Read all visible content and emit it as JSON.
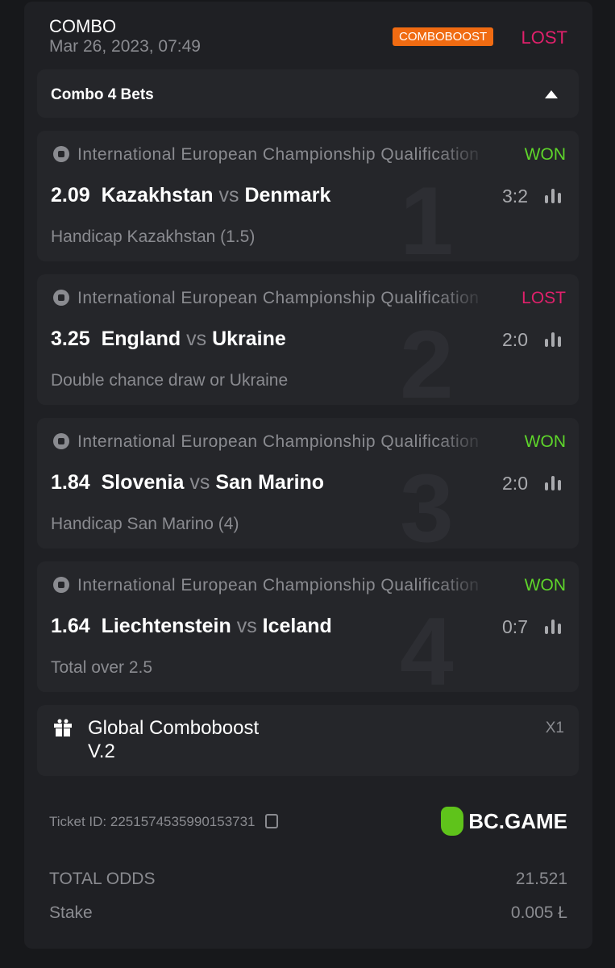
{
  "header": {
    "title": "COMBO",
    "date": "Mar 26, 2023, 07:49",
    "badge": "COMBOBOOST",
    "status": "LOST"
  },
  "combo": {
    "label": "Combo 4 Bets",
    "toggle_icon": "triangle-up-icon"
  },
  "legs": [
    {
      "index": "1",
      "league": "International European Championship Qualification",
      "result": "WON",
      "odds": "2.09",
      "home": "Kazakhstan",
      "vs": "vs",
      "away": "Denmark",
      "score": "3:2",
      "market": "Handicap Kazakhstan (1.5)"
    },
    {
      "index": "2",
      "league": "International European Championship Qualification",
      "result": "LOST",
      "odds": "3.25",
      "home": "England",
      "vs": "vs",
      "away": "Ukraine",
      "score": "2:0",
      "market": "Double chance draw or Ukraine"
    },
    {
      "index": "3",
      "league": "International European Championship Qualification",
      "result": "WON",
      "odds": "1.84",
      "home": "Slovenia",
      "vs": "vs",
      "away": "San Marino",
      "score": "2:0",
      "market": "Handicap San Marino (4)"
    },
    {
      "index": "4",
      "league": "International European Championship Qualification",
      "result": "WON",
      "odds": "1.64",
      "home": "Liechtenstein",
      "vs": "vs",
      "away": "Iceland",
      "score": "0:7",
      "market": "Total over 2.5"
    }
  ],
  "boost": {
    "name": "Global Comboboost",
    "version": "V.2",
    "multiplier": "X1"
  },
  "ticket": {
    "label": "Ticket ID: 2251574535990153731"
  },
  "logo": {
    "text": "BC.GAME"
  },
  "totals": {
    "odds_label": "TOTAL ODDS",
    "odds_value": "21.521",
    "stake_label": "Stake",
    "stake_value": "0.005 Ł"
  },
  "colors": {
    "won": "#5ed52a",
    "lost": "#e0206b",
    "badge": "#f06b12",
    "brand": "#5fc31b"
  }
}
